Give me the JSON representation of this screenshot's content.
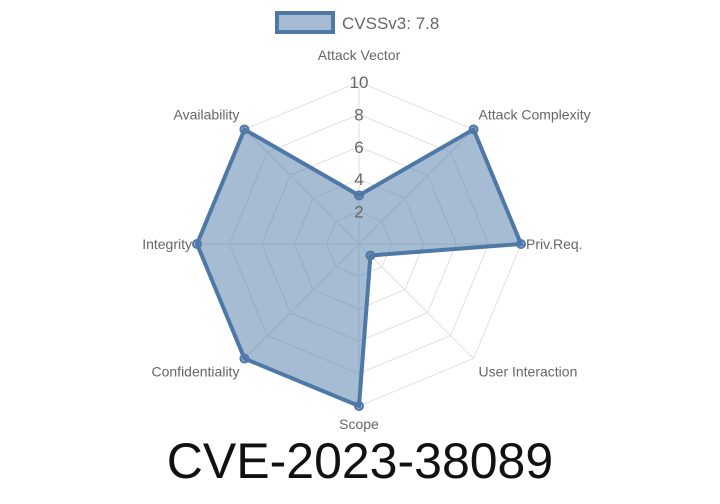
{
  "chart_data": {
    "type": "radar",
    "categories": [
      "Attack Vector",
      "Attack Complexity",
      "Priv.Req.",
      "User Interaction",
      "Scope",
      "Confidentiality",
      "Integrity",
      "Availability"
    ],
    "series": [
      {
        "name": "CVSSv3: 7.8",
        "values": [
          3,
          10,
          10,
          1,
          10,
          10,
          10,
          10
        ]
      }
    ],
    "rlim": [
      0,
      10
    ],
    "ticks": [
      "2",
      "4",
      "6",
      "8",
      "10"
    ],
    "grid": true,
    "legend": "top",
    "colors": {
      "stroke": "#4e79a7",
      "fill": "rgba(78,121,167,0.5)",
      "grid": "#e0e0e0"
    }
  },
  "title": "CVE-2023-38089"
}
